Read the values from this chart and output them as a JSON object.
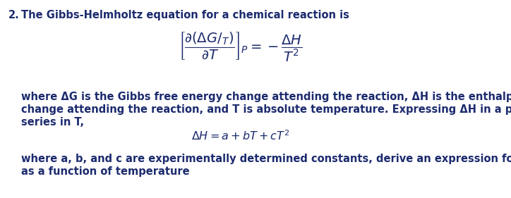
{
  "background_color": "#ffffff",
  "text_color": "#1c2b6e",
  "fig_width": 7.24,
  "fig_height": 2.81,
  "dpi": 100,
  "line1_num": "2.",
  "line1_text": "  The Gibbs-Helmholtz equation for a chemical reaction is",
  "equation_main": "$\\left[\\dfrac{\\partial(\\Delta G/_{T})}{\\partial T}\\right]_{P} = -\\dfrac{\\Delta H}{T^2}$",
  "line2": "where ΔG is the Gibbs free energy change attending the reaction, ΔH is the enthalpy",
  "line3": "change attending the reaction, and T is absolute temperature. Expressing ΔH in a power",
  "line4": "series in T,",
  "equation2": "$\\Delta H = a +bT + cT^2$",
  "line5": "where a, b, and c are experimentally determined constants, derive an expression for ΔG",
  "line6": "as a function of temperature",
  "font_size_body": 10.5,
  "font_size_eq": 14,
  "font_size_eq2": 11.5
}
